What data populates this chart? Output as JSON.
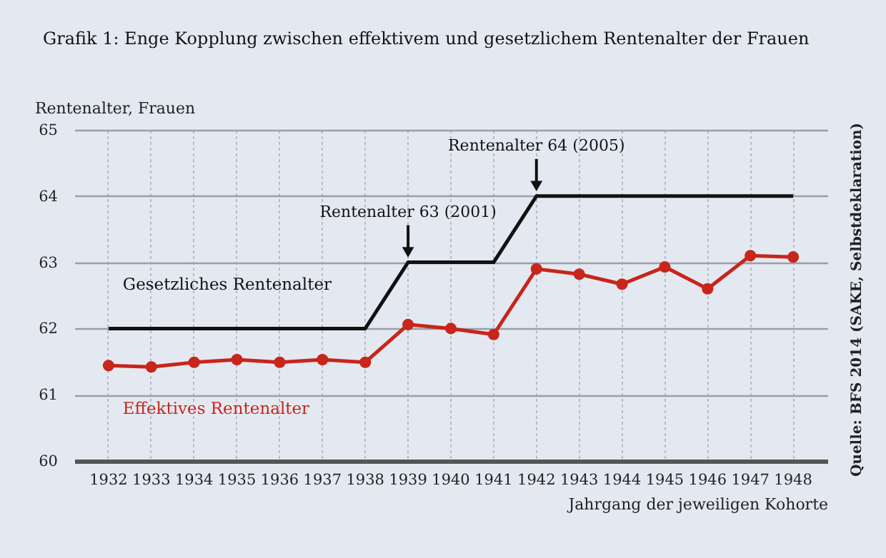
{
  "chart_data": {
    "type": "line",
    "title": "Grafik 1: Enge Kopplung zwischen effektivem und gesetzlichem Rentenalter der Frauen",
    "ylabel": "Rentenalter, Frauen",
    "xlabel": "Jahrgang der jeweiligen Kohorte",
    "categories": [
      "1932",
      "1933",
      "1934",
      "1935",
      "1936",
      "1937",
      "1938",
      "1939",
      "1940",
      "1941",
      "1942",
      "1943",
      "1944",
      "1945",
      "1946",
      "1947",
      "1948"
    ],
    "series": [
      {
        "name": "Gesetzliches Rentenalter",
        "color": "#111111",
        "marker": "none",
        "values": [
          62,
          62,
          62,
          62,
          62,
          62,
          62,
          63,
          63,
          63,
          64,
          64,
          64,
          64,
          64,
          64,
          64
        ]
      },
      {
        "name": "Effektives Rentenalter",
        "color": "#c8251b",
        "marker": "circle",
        "values": [
          61.44,
          61.42,
          61.49,
          61.53,
          61.49,
          61.53,
          61.49,
          62.06,
          62.0,
          61.91,
          62.9,
          62.82,
          62.67,
          62.93,
          62.6,
          63.1,
          63.08
        ]
      }
    ],
    "ylim": [
      60,
      65
    ],
    "yticks": [
      60,
      61,
      62,
      63,
      64,
      65
    ],
    "grid": true,
    "annotations": [
      {
        "text": "Rentenalter 63 (2001)",
        "x": "1939",
        "y": 63
      },
      {
        "text": "Rentenalter 64 (2005)",
        "x": "1942",
        "y": 64
      },
      "Quelle: BFS 2014 (SAKE, Selbstdeklaration)"
    ]
  }
}
